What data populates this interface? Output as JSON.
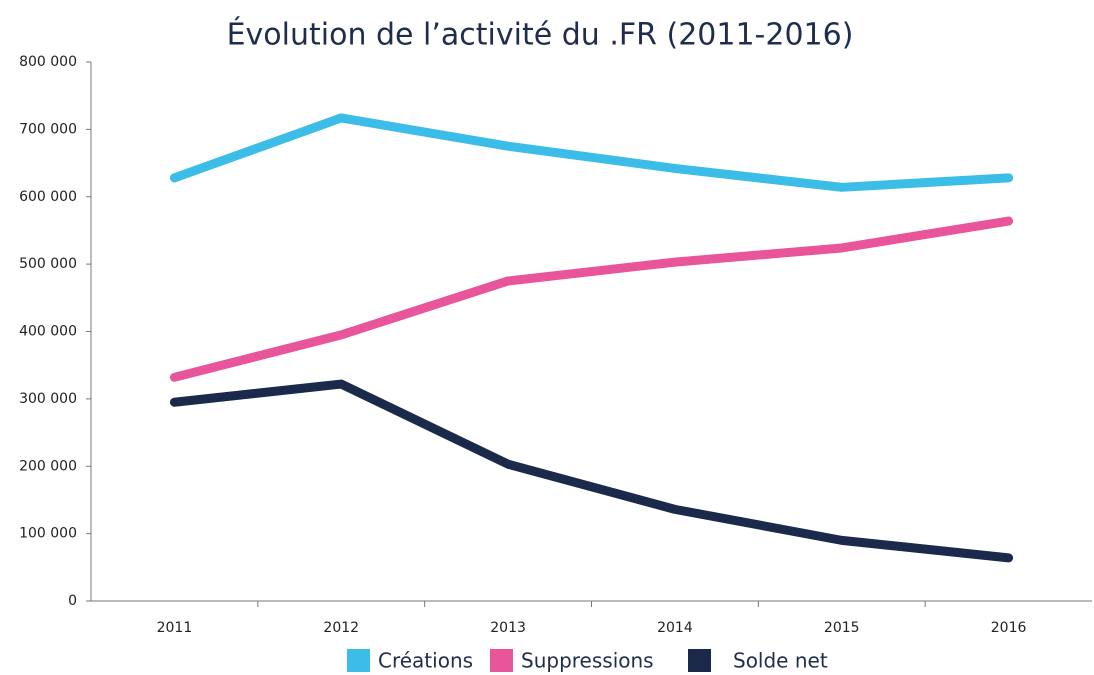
{
  "chart_data": {
    "type": "line",
    "title": "Évolution de l’activité du .FR (2011-2016)",
    "categories": [
      "2011",
      "2012",
      "2013",
      "2014",
      "2015",
      "2016"
    ],
    "series": [
      {
        "name": "Créations",
        "color": "#3bbde8",
        "values": [
          628000,
          717000,
          675000,
          642000,
          614000,
          628000
        ]
      },
      {
        "name": "Suppressions",
        "color": "#e8559a",
        "values": [
          332000,
          395000,
          475000,
          503000,
          524000,
          564000
        ]
      },
      {
        "name": "Solde net",
        "color": "#1b2a4a",
        "values": [
          295000,
          322000,
          203000,
          136000,
          90000,
          64000
        ]
      }
    ],
    "ylim": [
      0,
      800000
    ],
    "yticks": [
      0,
      {
        "value": 100000,
        "label": "100 000"
      },
      {
        "value": 200000,
        "label": "200 000"
      },
      {
        "value": 300000,
        "label": "300 000"
      },
      {
        "value": 400000,
        "label": "400 000"
      },
      {
        "value": 500000,
        "label": "500 000"
      },
      {
        "value": 600000,
        "label": "600 000"
      },
      {
        "value": 700000,
        "label": "700 000"
      },
      {
        "value": 800000,
        "label": "800 000"
      }
    ],
    "grid": false,
    "legend": "bottom"
  }
}
